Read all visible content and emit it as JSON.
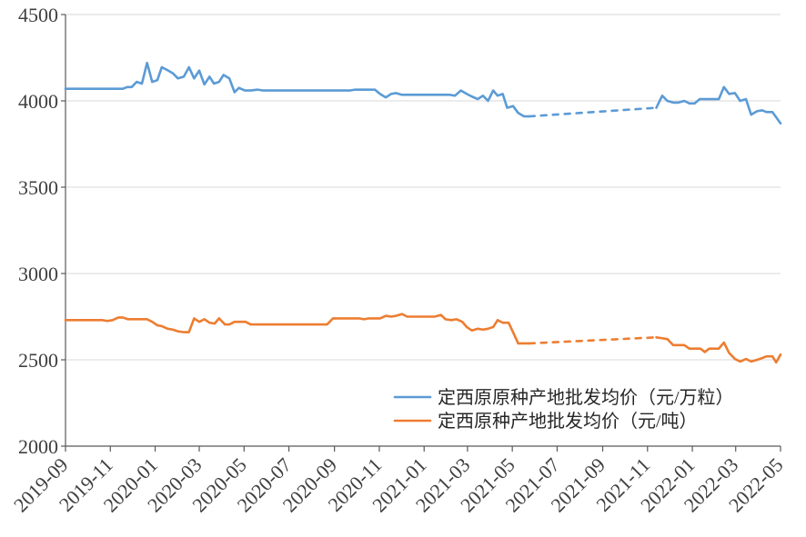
{
  "chart_data": {
    "type": "line",
    "title": "",
    "xlabel": "",
    "ylabel": "",
    "xlim": [
      "2019-09",
      "2022-05"
    ],
    "x_ticks": [
      "2019-09",
      "2019-11",
      "2020-01",
      "2020-03",
      "2020-05",
      "2020-07",
      "2020-09",
      "2020-11",
      "2021-01",
      "2021-03",
      "2021-05",
      "2021-07",
      "2021-09",
      "2021-11",
      "2022-01",
      "2022-03",
      "2022-05"
    ],
    "ylim": [
      2000,
      4500
    ],
    "y_ticks": [
      2000,
      2500,
      3000,
      3500,
      4000,
      4500
    ],
    "grid": "horizontal",
    "legend_position": "bottom-right",
    "series": [
      {
        "name": "定西原原种产地批发均价（元/万粒）",
        "color": "#5B9BD5",
        "dashed_segments": [
          [
            "2021-05-24",
            "2021-11-13"
          ]
        ],
        "x": [
          "2019-09-01",
          "2019-11-18",
          "2019-11-24",
          "2019-11-30",
          "2019-12-07",
          "2019-12-14",
          "2019-12-21",
          "2019-12-28",
          "2020-01-04",
          "2020-01-10",
          "2020-01-19",
          "2020-01-25",
          "2020-02-01",
          "2020-02-09",
          "2020-02-16",
          "2020-02-23",
          "2020-03-01",
          "2020-03-08",
          "2020-03-15",
          "2020-03-21",
          "2020-03-28",
          "2020-04-03",
          "2020-04-11",
          "2020-04-18",
          "2020-04-24",
          "2020-05-02",
          "2020-05-10",
          "2020-05-19",
          "2020-05-27",
          "2020-09-22",
          "2020-09-29",
          "2020-10-26",
          "2020-11-02",
          "2020-11-10",
          "2020-11-17",
          "2020-11-24",
          "2020-12-02",
          "2021-02-05",
          "2021-02-12",
          "2021-02-20",
          "2021-02-28",
          "2021-03-07",
          "2021-03-15",
          "2021-03-22",
          "2021-03-29",
          "2021-04-05",
          "2021-04-11",
          "2021-04-18",
          "2021-04-24",
          "2021-05-02",
          "2021-05-09",
          "2021-05-17",
          "2021-05-24",
          "2021-11-13",
          "2021-11-21",
          "2021-11-28",
          "2021-12-06",
          "2021-12-13",
          "2021-12-21",
          "2021-12-28",
          "2022-01-04",
          "2022-01-11",
          "2022-02-06",
          "2022-02-13",
          "2022-02-20",
          "2022-02-28",
          "2022-03-07",
          "2022-03-15",
          "2022-03-22",
          "2022-03-30",
          "2022-04-06",
          "2022-04-12",
          "2022-04-20",
          "2022-05-01"
        ],
        "y": [
          4070,
          4070,
          4080,
          4080,
          4110,
          4100,
          4220,
          4110,
          4120,
          4195,
          4175,
          4160,
          4130,
          4140,
          4195,
          4130,
          4175,
          4095,
          4140,
          4100,
          4110,
          4150,
          4130,
          4050,
          4075,
          4060,
          4060,
          4065,
          4060,
          4060,
          4065,
          4065,
          4040,
          4020,
          4040,
          4045,
          4035,
          4035,
          4030,
          4060,
          4040,
          4025,
          4010,
          4030,
          4000,
          4060,
          4030,
          4040,
          3960,
          3970,
          3930,
          3910,
          3910,
          3960,
          4030,
          4000,
          3990,
          3990,
          4000,
          3985,
          3985,
          4010,
          4010,
          4080,
          4040,
          4045,
          4000,
          4010,
          3920,
          3940,
          3945,
          3935,
          3935,
          3870
        ]
      },
      {
        "name": "定西原种产地批发均价（元/吨）",
        "color": "#ED7D31",
        "dashed_segments": [
          [
            "2021-05-24",
            "2021-11-13"
          ]
        ],
        "x": [
          "2019-09-01",
          "2019-10-21",
          "2019-10-28",
          "2019-11-04",
          "2019-11-12",
          "2019-11-18",
          "2019-11-25",
          "2019-12-21",
          "2019-12-28",
          "2020-01-04",
          "2020-01-10",
          "2020-01-18",
          "2020-01-25",
          "2020-02-01",
          "2020-02-09",
          "2020-02-16",
          "2020-02-23",
          "2020-03-01",
          "2020-03-08",
          "2020-03-15",
          "2020-03-22",
          "2020-03-28",
          "2020-04-05",
          "2020-04-11",
          "2020-04-18",
          "2020-04-26",
          "2020-05-03",
          "2020-05-10",
          "2020-08-22",
          "2020-08-30",
          "2020-10-05",
          "2020-10-11",
          "2020-10-18",
          "2020-11-02",
          "2020-11-10",
          "2020-11-17",
          "2020-11-24",
          "2020-12-02",
          "2020-12-09",
          "2021-01-15",
          "2021-01-24",
          "2021-01-30",
          "2021-02-07",
          "2021-02-14",
          "2021-02-22",
          "2021-02-28",
          "2021-03-07",
          "2021-03-15",
          "2021-03-22",
          "2021-03-29",
          "2021-04-05",
          "2021-04-11",
          "2021-04-18",
          "2021-04-26",
          "2021-05-02",
          "2021-05-09",
          "2021-05-24",
          "2021-11-13",
          "2021-11-21",
          "2021-11-28",
          "2021-12-06",
          "2021-12-21",
          "2021-12-28",
          "2022-01-12",
          "2022-01-18",
          "2022-01-24",
          "2022-02-06",
          "2022-02-13",
          "2022-02-20",
          "2022-02-28",
          "2022-03-07",
          "2022-03-15",
          "2022-03-22",
          "2022-03-30",
          "2022-04-06",
          "2022-04-12",
          "2022-04-20",
          "2022-04-25",
          "2022-05-01"
        ],
        "y": [
          2730,
          2730,
          2725,
          2730,
          2745,
          2745,
          2735,
          2735,
          2720,
          2700,
          2695,
          2680,
          2675,
          2665,
          2660,
          2660,
          2740,
          2720,
          2735,
          2715,
          2710,
          2740,
          2705,
          2705,
          2720,
          2720,
          2720,
          2705,
          2705,
          2740,
          2740,
          2735,
          2740,
          2740,
          2755,
          2750,
          2755,
          2765,
          2750,
          2750,
          2760,
          2735,
          2730,
          2735,
          2720,
          2690,
          2670,
          2680,
          2675,
          2680,
          2690,
          2730,
          2715,
          2715,
          2660,
          2595,
          2595,
          2630,
          2625,
          2620,
          2585,
          2585,
          2565,
          2565,
          2545,
          2565,
          2565,
          2600,
          2540,
          2505,
          2490,
          2505,
          2490,
          2500,
          2510,
          2520,
          2520,
          2485,
          2530
        ]
      }
    ]
  }
}
